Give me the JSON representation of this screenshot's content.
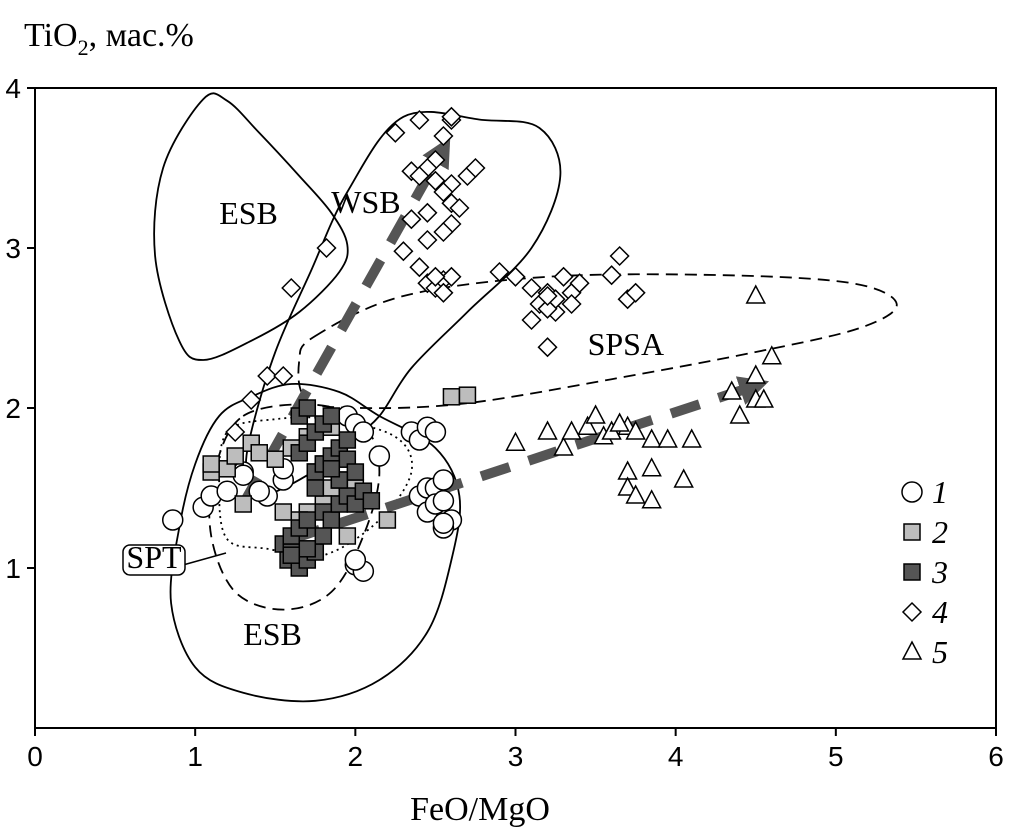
{
  "chart_data": {
    "type": "scatter",
    "title": "",
    "xlabel": "FeO/MgO",
    "ylabel_parts": [
      "TiO",
      "2",
      ", мас.%"
    ],
    "xlim": [
      0,
      6
    ],
    "ylim": [
      0,
      4
    ],
    "x_ticks": [
      0,
      1,
      2,
      3,
      4,
      5,
      6
    ],
    "y_ticks": [
      1,
      2,
      3,
      4
    ],
    "grid": false,
    "legend_position": "right",
    "regions": [
      {
        "name": "ESB-upper",
        "label": "ESB",
        "label_at": [
          1.15,
          3.15
        ],
        "style": "solid",
        "path": [
          [
            1.05,
            3.93
          ],
          [
            1.2,
            3.92
          ],
          [
            1.4,
            3.72
          ],
          [
            1.65,
            3.45
          ],
          [
            1.85,
            3.22
          ],
          [
            1.95,
            3.02
          ],
          [
            1.9,
            2.85
          ],
          [
            1.65,
            2.6
          ],
          [
            1.35,
            2.42
          ],
          [
            1.05,
            2.3
          ],
          [
            0.9,
            2.42
          ],
          [
            0.75,
            2.95
          ],
          [
            0.8,
            3.5
          ]
        ]
      },
      {
        "name": "WSB",
        "label": "WSB",
        "label_at": [
          1.85,
          3.22
        ],
        "style": "solid",
        "path": [
          [
            2.3,
            3.82
          ],
          [
            2.8,
            3.8
          ],
          [
            3.15,
            3.75
          ],
          [
            3.28,
            3.45
          ],
          [
            3.1,
            3.0
          ],
          [
            2.7,
            2.6
          ],
          [
            2.35,
            2.25
          ],
          [
            2.15,
            1.95
          ],
          [
            1.95,
            1.78
          ],
          [
            1.7,
            1.58
          ],
          [
            1.4,
            1.45
          ],
          [
            1.32,
            1.6
          ],
          [
            1.35,
            1.85
          ],
          [
            1.5,
            2.35
          ],
          [
            1.72,
            2.85
          ],
          [
            1.95,
            3.35
          ]
        ]
      },
      {
        "name": "ESB-lower",
        "label": "ESB",
        "label_at": [
          1.3,
          0.52
        ],
        "style": "solid",
        "path": [
          [
            1.35,
            2.07
          ],
          [
            1.6,
            2.15
          ],
          [
            1.9,
            2.1
          ],
          [
            2.15,
            1.95
          ],
          [
            2.5,
            1.75
          ],
          [
            2.65,
            1.45
          ],
          [
            2.6,
            1.05
          ],
          [
            2.45,
            0.6
          ],
          [
            2.15,
            0.3
          ],
          [
            1.75,
            0.17
          ],
          [
            1.3,
            0.22
          ],
          [
            1.0,
            0.38
          ],
          [
            0.85,
            0.78
          ],
          [
            0.9,
            1.25
          ],
          [
            1.0,
            1.65
          ],
          [
            1.15,
            1.95
          ]
        ]
      },
      {
        "name": "SPSA",
        "label": "SPSA",
        "label_at": [
          3.45,
          2.33
        ],
        "style": "dashed",
        "path": [
          [
            1.75,
            2.45
          ],
          [
            2.3,
            2.7
          ],
          [
            3.2,
            2.82
          ],
          [
            4.3,
            2.83
          ],
          [
            5.1,
            2.78
          ],
          [
            5.38,
            2.65
          ],
          [
            5.15,
            2.5
          ],
          [
            4.5,
            2.35
          ],
          [
            3.6,
            2.18
          ],
          [
            2.7,
            2.03
          ],
          [
            2.05,
            2.0
          ],
          [
            1.7,
            2.05
          ],
          [
            1.65,
            2.3
          ]
        ]
      },
      {
        "name": "SPT",
        "label": "SPT",
        "label_at": [
          0.6,
          1.05
        ],
        "style": "dashed",
        "path": [
          [
            1.3,
            1.95
          ],
          [
            1.75,
            2.02
          ],
          [
            2.05,
            1.9
          ],
          [
            2.15,
            1.6
          ],
          [
            2.05,
            1.2
          ],
          [
            1.85,
            0.85
          ],
          [
            1.55,
            0.74
          ],
          [
            1.25,
            0.85
          ],
          [
            1.1,
            1.2
          ],
          [
            1.12,
            1.6
          ]
        ]
      },
      {
        "name": "SPT-inner",
        "label": "",
        "label_at": null,
        "style": "dotted",
        "path": [
          [
            1.2,
            1.85
          ],
          [
            1.5,
            1.93
          ],
          [
            1.85,
            1.93
          ],
          [
            2.25,
            1.82
          ],
          [
            2.35,
            1.6
          ],
          [
            2.15,
            1.3
          ],
          [
            1.8,
            1.08
          ],
          [
            1.45,
            1.12
          ],
          [
            1.2,
            1.18
          ],
          [
            1.15,
            1.5
          ]
        ]
      }
    ],
    "callout_label": "SPT",
    "arrows": [
      {
        "from": [
          1.3,
          1.4
        ],
        "to": [
          2.55,
          3.62
        ],
        "color": "#555555"
      },
      {
        "from": [
          1.6,
          1.18
        ],
        "to": [
          4.5,
          2.14
        ],
        "color": "#555555"
      }
    ],
    "series": [
      {
        "name": "1",
        "marker": "circle",
        "fill": "#ffffff",
        "points": [
          [
            0.86,
            1.3
          ],
          [
            1.05,
            1.38
          ],
          [
            1.1,
            1.45
          ],
          [
            1.2,
            1.48
          ],
          [
            1.3,
            1.6
          ],
          [
            1.3,
            1.58
          ],
          [
            1.45,
            1.45
          ],
          [
            1.4,
            1.48
          ],
          [
            1.55,
            1.55
          ],
          [
            1.95,
            1.95
          ],
          [
            2.0,
            1.9
          ],
          [
            2.05,
            1.85
          ],
          [
            2.15,
            1.7
          ],
          [
            2.0,
            1.02
          ],
          [
            2.05,
            0.98
          ],
          [
            2.0,
            1.05
          ],
          [
            2.35,
            1.85
          ],
          [
            2.4,
            1.8
          ],
          [
            2.45,
            1.88
          ],
          [
            2.5,
            1.85
          ],
          [
            2.4,
            1.45
          ],
          [
            2.45,
            1.5
          ],
          [
            2.5,
            1.5
          ],
          [
            2.55,
            1.55
          ],
          [
            2.45,
            1.35
          ],
          [
            2.5,
            1.4
          ],
          [
            2.55,
            1.42
          ],
          [
            2.6,
            1.3
          ],
          [
            2.55,
            1.25
          ],
          [
            2.55,
            1.28
          ],
          [
            1.55,
            1.62
          ]
        ]
      },
      {
        "name": "2",
        "marker": "square",
        "fill": "#bdbdbd",
        "points": [
          [
            1.1,
            1.6
          ],
          [
            1.1,
            1.65
          ],
          [
            1.2,
            1.62
          ],
          [
            1.25,
            1.7
          ],
          [
            1.3,
            1.4
          ],
          [
            1.35,
            1.78
          ],
          [
            1.4,
            1.72
          ],
          [
            1.5,
            1.68
          ],
          [
            1.6,
            1.75
          ],
          [
            1.7,
            1.82
          ],
          [
            1.75,
            1.6
          ],
          [
            1.8,
            1.65
          ],
          [
            1.85,
            1.5
          ],
          [
            1.9,
            1.55
          ],
          [
            1.95,
            1.45
          ],
          [
            2.0,
            1.5
          ],
          [
            1.7,
            1.35
          ],
          [
            1.8,
            1.4
          ],
          [
            1.65,
            1.3
          ],
          [
            1.95,
            1.2
          ],
          [
            2.2,
            1.3
          ],
          [
            2.6,
            2.07
          ],
          [
            2.7,
            2.08
          ],
          [
            1.55,
            1.35
          ],
          [
            1.85,
            1.88
          ]
        ]
      },
      {
        "name": "3",
        "marker": "square",
        "fill": "#555555",
        "points": [
          [
            1.55,
            1.15
          ],
          [
            1.6,
            1.1
          ],
          [
            1.58,
            1.05
          ],
          [
            1.65,
            1.0
          ],
          [
            1.7,
            1.05
          ],
          [
            1.75,
            1.1
          ],
          [
            1.6,
            1.2
          ],
          [
            1.65,
            1.25
          ],
          [
            1.7,
            1.3
          ],
          [
            1.8,
            1.35
          ],
          [
            1.85,
            1.3
          ],
          [
            1.9,
            1.4
          ],
          [
            1.95,
            1.45
          ],
          [
            2.0,
            1.4
          ],
          [
            2.05,
            1.48
          ],
          [
            2.1,
            1.42
          ],
          [
            1.65,
            1.72
          ],
          [
            1.7,
            1.78
          ],
          [
            1.75,
            1.85
          ],
          [
            1.8,
            1.9
          ],
          [
            1.65,
            1.95
          ],
          [
            1.7,
            2.0
          ],
          [
            1.85,
            1.95
          ],
          [
            1.75,
            1.6
          ],
          [
            1.8,
            1.65
          ],
          [
            1.85,
            1.7
          ],
          [
            1.9,
            1.75
          ],
          [
            1.95,
            1.68
          ],
          [
            2.0,
            1.6
          ],
          [
            1.9,
            1.55
          ],
          [
            1.75,
            1.5
          ],
          [
            1.8,
            1.2
          ],
          [
            1.7,
            1.12
          ],
          [
            1.6,
            1.08
          ],
          [
            1.85,
            1.62
          ],
          [
            1.95,
            1.8
          ]
        ]
      },
      {
        "name": "4",
        "marker": "diamond",
        "fill": "#ffffff",
        "points": [
          [
            2.6,
            3.8
          ],
          [
            2.4,
            3.8
          ],
          [
            2.25,
            3.72
          ],
          [
            2.55,
            3.7
          ],
          [
            2.6,
            3.82
          ],
          [
            2.5,
            3.55
          ],
          [
            2.45,
            3.5
          ],
          [
            2.35,
            3.48
          ],
          [
            2.4,
            3.45
          ],
          [
            2.5,
            3.42
          ],
          [
            2.6,
            3.4
          ],
          [
            2.7,
            3.45
          ],
          [
            2.75,
            3.5
          ],
          [
            2.55,
            3.35
          ],
          [
            2.6,
            3.28
          ],
          [
            2.65,
            3.25
          ],
          [
            2.45,
            3.22
          ],
          [
            2.35,
            3.18
          ],
          [
            2.6,
            3.15
          ],
          [
            2.55,
            3.1
          ],
          [
            2.45,
            3.05
          ],
          [
            2.3,
            2.98
          ],
          [
            2.4,
            2.88
          ],
          [
            2.45,
            2.78
          ],
          [
            2.5,
            2.75
          ],
          [
            2.55,
            2.8
          ],
          [
            2.6,
            2.82
          ],
          [
            2.55,
            2.72
          ],
          [
            2.5,
            2.82
          ],
          [
            2.9,
            2.85
          ],
          [
            3.0,
            2.82
          ],
          [
            3.1,
            2.75
          ],
          [
            3.15,
            2.65
          ],
          [
            3.2,
            2.72
          ],
          [
            3.25,
            2.6
          ],
          [
            3.1,
            2.55
          ],
          [
            3.3,
            2.82
          ],
          [
            3.35,
            2.72
          ],
          [
            3.25,
            2.68
          ],
          [
            3.4,
            2.78
          ],
          [
            3.2,
            2.62
          ],
          [
            3.35,
            2.65
          ],
          [
            3.6,
            2.83
          ],
          [
            3.65,
            2.95
          ],
          [
            3.7,
            2.68
          ],
          [
            3.75,
            2.72
          ],
          [
            3.2,
            2.38
          ],
          [
            1.82,
            3.0
          ],
          [
            1.6,
            2.75
          ],
          [
            1.45,
            2.2
          ],
          [
            1.55,
            2.2
          ],
          [
            1.35,
            2.05
          ],
          [
            1.25,
            1.85
          ],
          [
            3.2,
            2.7
          ]
        ]
      },
      {
        "name": "5",
        "marker": "triangle",
        "fill": "#ffffff",
        "points": [
          [
            3.0,
            1.78
          ],
          [
            3.2,
            1.85
          ],
          [
            3.3,
            1.75
          ],
          [
            3.35,
            1.85
          ],
          [
            3.45,
            1.88
          ],
          [
            3.5,
            1.95
          ],
          [
            3.55,
            1.82
          ],
          [
            3.6,
            1.85
          ],
          [
            3.7,
            1.88
          ],
          [
            3.75,
            1.85
          ],
          [
            3.85,
            1.8
          ],
          [
            3.95,
            1.8
          ],
          [
            4.1,
            1.8
          ],
          [
            3.7,
            1.6
          ],
          [
            3.85,
            1.62
          ],
          [
            3.7,
            1.5
          ],
          [
            3.75,
            1.45
          ],
          [
            3.85,
            1.42
          ],
          [
            4.05,
            1.55
          ],
          [
            4.35,
            2.1
          ],
          [
            4.4,
            1.95
          ],
          [
            4.5,
            2.05
          ],
          [
            4.55,
            2.05
          ],
          [
            4.5,
            2.2
          ],
          [
            4.6,
            2.32
          ],
          [
            4.5,
            2.7
          ],
          [
            3.65,
            1.9
          ]
        ]
      }
    ]
  }
}
